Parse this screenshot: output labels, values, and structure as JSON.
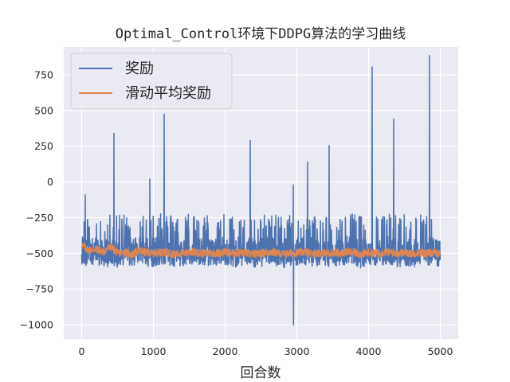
{
  "chart_data": {
    "type": "line",
    "title": "Optimal_Control环境下DDPG算法的学习曲线",
    "xlabel": "回合数",
    "ylabel": "",
    "xlim": [
      -250,
      5250
    ],
    "ylim": [
      -1100,
      945
    ],
    "x_ticks": [
      0,
      1000,
      2000,
      3000,
      4000,
      5000
    ],
    "x_tick_labels": [
      "0",
      "1000",
      "2000",
      "3000",
      "4000",
      "5000"
    ],
    "y_ticks": [
      750,
      500,
      250,
      0,
      -250,
      -500,
      -750,
      -1000
    ],
    "y_tick_labels": [
      "750",
      "500",
      "250",
      "0",
      "−250",
      "−500",
      "−750",
      "−1000"
    ],
    "grid": true,
    "legend_position": "top-left",
    "x": [
      0,
      100,
      200,
      300,
      400,
      500,
      600,
      700,
      800,
      900,
      1000,
      1100,
      1200,
      1300,
      1400,
      1500,
      1600,
      1700,
      1800,
      1900,
      2000,
      2100,
      2200,
      2300,
      2400,
      2500,
      2600,
      2700,
      2800,
      2900,
      3000,
      3100,
      3200,
      3300,
      3400,
      3500,
      3600,
      3700,
      3800,
      3900,
      4000,
      4100,
      4200,
      4300,
      4400,
      4500,
      4600,
      4700,
      4800,
      4900,
      5000
    ],
    "series": [
      {
        "name": "奖励",
        "color": "#4c72b0",
        "values": [
          -480,
          -500,
          -470,
          -520,
          -490,
          -510,
          -480,
          -500,
          -470,
          -495,
          -505,
          -485,
          -490,
          -510,
          -500,
          -480,
          -495,
          -505,
          -490,
          -500,
          -485,
          -510,
          -495,
          -490,
          -500,
          -505,
          -480,
          -495,
          -510,
          -500,
          -490,
          -485,
          -500,
          -495,
          -505,
          -490,
          -500,
          -485,
          -495,
          -510,
          -490,
          -500,
          -495,
          -485,
          -505,
          -490,
          -500,
          -495,
          -510,
          -490,
          -500
        ],
        "min": [
          -590,
          -600,
          -595,
          -610,
          -590,
          -600,
          -605,
          -590,
          -600,
          -595,
          -600,
          -590,
          -600,
          -610,
          -620,
          -600,
          -590,
          -600,
          -595,
          -605,
          -600,
          -590,
          -600,
          -605,
          -595,
          -600,
          -610,
          -600,
          -605,
          -1000,
          -600,
          -605,
          -595,
          -600,
          -590,
          -600,
          -595,
          -605,
          -600,
          -595,
          -600,
          -590,
          -600,
          -595,
          -605,
          -600,
          -595,
          -600,
          -590,
          -600,
          -600
        ],
        "max": [
          -90,
          -130,
          -120,
          -100,
          340,
          -150,
          -140,
          -180,
          -140,
          20,
          -150,
          475,
          -180,
          -160,
          -170,
          -180,
          -150,
          -170,
          -160,
          -170,
          -160,
          -170,
          -160,
          290,
          -170,
          -180,
          -170,
          -160,
          -180,
          -20,
          -160,
          140,
          -160,
          -170,
          255,
          -160,
          -170,
          -160,
          -180,
          -170,
          805,
          -170,
          -160,
          440,
          -170,
          -160,
          -170,
          -160,
          885,
          -180,
          -160
        ]
      },
      {
        "name": "滑动平均奖励",
        "color": "#dd8452",
        "values": [
          -440,
          -480,
          -470,
          -490,
          -450,
          -500,
          -490,
          -510,
          -480,
          -495,
          -500,
          -490,
          -495,
          -505,
          -500,
          -490,
          -495,
          -500,
          -495,
          -500,
          -490,
          -500,
          -495,
          -500,
          -505,
          -500,
          -490,
          -495,
          -505,
          -500,
          -495,
          -490,
          -500,
          -495,
          -500,
          -495,
          -500,
          -490,
          -495,
          -505,
          -495,
          -500,
          -495,
          -490,
          -500,
          -495,
          -500,
          -495,
          -500,
          -495,
          -500
        ]
      }
    ]
  }
}
